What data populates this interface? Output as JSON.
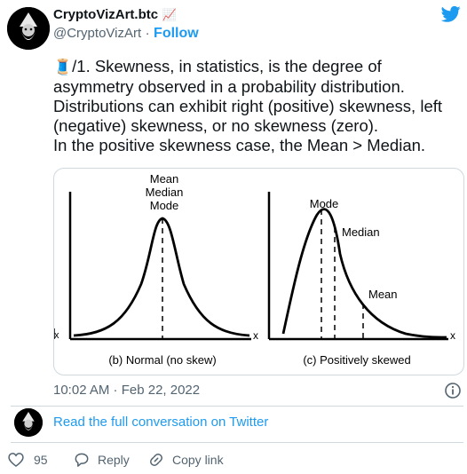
{
  "header": {
    "display_name": "CryptoVizArt.btc",
    "name_emoji": "📈",
    "handle": "@CryptoVizArt",
    "separator": "·",
    "follow_label": "Follow",
    "brand_icon": "twitter-bird-icon",
    "brand_color": "#1d9bf0"
  },
  "tweet": {
    "emoji": "🧵",
    "lines": [
      "/1. Skewness, in statistics, is the degree of",
      "asymmetry observed in a probability distribution.",
      "Distributions can exhibit right (positive) skewness, left",
      "(negative) skewness, or no skewness (zero).",
      "In the positive skewness case, the Mean > Median."
    ]
  },
  "figure": {
    "left_partial_x": "x",
    "normal": {
      "labels": [
        "Mean",
        "Median",
        "Mode"
      ],
      "x_label": "x",
      "caption": "(b) Normal (no skew)"
    },
    "positive": {
      "mode_label": "Mode",
      "median_label": "Median",
      "mean_label": "Mean",
      "x_label": "x",
      "caption": "(c) Positively skewed"
    }
  },
  "timestamp": "10:02 AM · Feb 22, 2022",
  "info_icon": "info-icon",
  "conversation_link": "Read the full conversation on Twitter",
  "actions": {
    "like_count": "95",
    "reply_label": "Reply",
    "copy_label": "Copy link"
  }
}
